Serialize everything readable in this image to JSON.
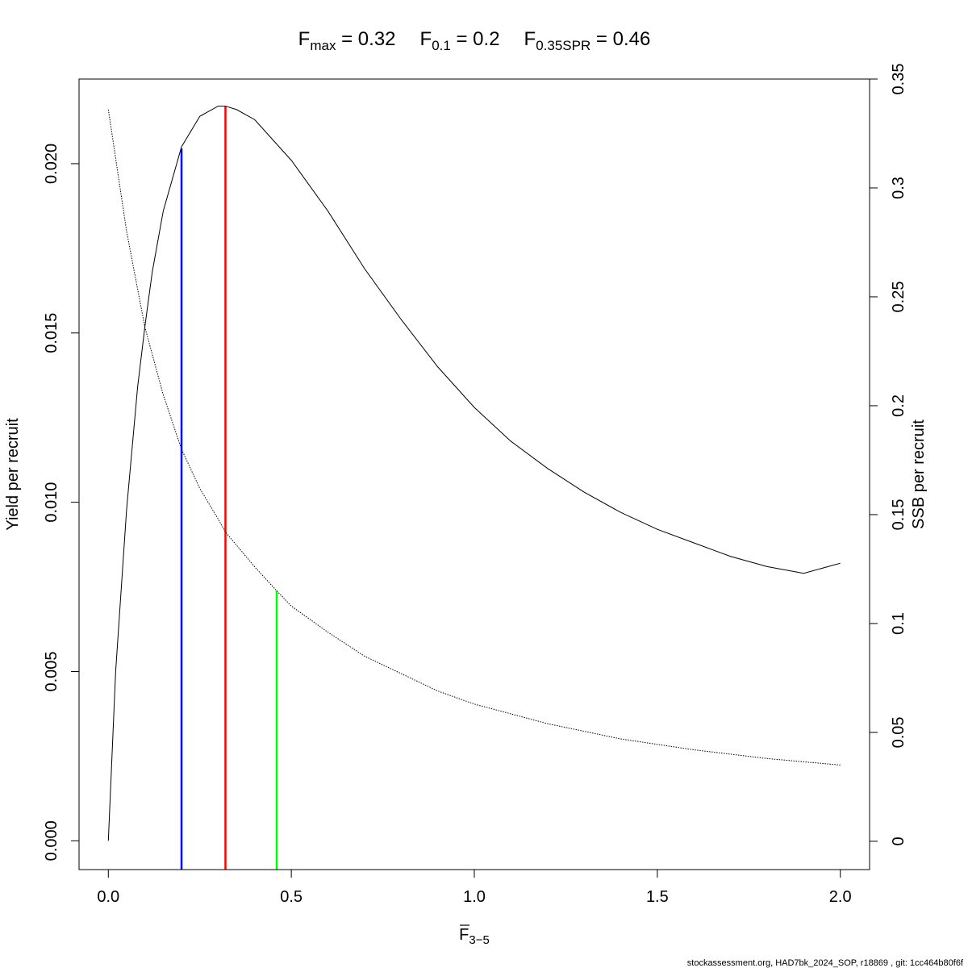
{
  "chart_data": {
    "type": "line",
    "title_parts": [
      {
        "base": "F",
        "sub": "max",
        "rest": " = 0.32",
        "color": "#000000"
      },
      {
        "base": "F",
        "sub": "0.1",
        "rest": " = 0.2",
        "color": "#000000"
      },
      {
        "base": "F",
        "sub": "0.35SPR",
        "rest": " = 0.46",
        "color": "#000000"
      }
    ],
    "xlabel": {
      "base": "F",
      "sub": "3−5"
    },
    "ylabel_left": "Yield per recruit",
    "ylabel_right": "SSB per recruit",
    "xlim": [
      -0.08,
      2.08
    ],
    "ylim_left": [
      -0.00085,
      0.0225
    ],
    "ylim_right": [
      -0.013,
      0.35
    ],
    "x_ticks": [
      0,
      0.5,
      1,
      1.5,
      2
    ],
    "x_tick_labels": [
      "0.0",
      "0.5",
      "1.0",
      "1.5",
      "2.0"
    ],
    "y_left_ticks": [
      0,
      0.005,
      0.01,
      0.015,
      0.02
    ],
    "y_left_tick_labels": [
      "0.000",
      "0.005",
      "0.010",
      "0.015",
      "0.020"
    ],
    "y_right_ticks": [
      0,
      0.05,
      0.1,
      0.15,
      0.2,
      0.25,
      0.3,
      0.35
    ],
    "y_right_tick_labels": [
      "0",
      "0.05",
      "0.1",
      "0.15",
      "0.2",
      "0.25",
      "0.3",
      "0.35"
    ],
    "series": [
      {
        "axis": "left",
        "style": "solid",
        "color": "#000000",
        "x": [
          0,
          0.02,
          0.05,
          0.08,
          0.1,
          0.12,
          0.15,
          0.2,
          0.25,
          0.3,
          0.32,
          0.35,
          0.4,
          0.5,
          0.6,
          0.7,
          0.8,
          0.9,
          1.0,
          1.1,
          1.2,
          1.3,
          1.4,
          1.5,
          1.6,
          1.7,
          1.8,
          1.9,
          2.0
        ],
        "y": [
          0,
          0.005,
          0.0098,
          0.0134,
          0.0152,
          0.0168,
          0.0186,
          0.0205,
          0.0214,
          0.0217,
          0.0217,
          0.0216,
          0.0213,
          0.0201,
          0.0186,
          0.0169,
          0.0154,
          0.014,
          0.0128,
          0.0118,
          0.011,
          0.0103,
          0.0097,
          0.0092,
          0.0088,
          0.0084,
          0.0081,
          0.0079,
          0.0082
        ]
      },
      {
        "axis": "right",
        "style": "dotted",
        "color": "#000000",
        "x": [
          0,
          0.05,
          0.1,
          0.15,
          0.2,
          0.25,
          0.3,
          0.32,
          0.4,
          0.46,
          0.5,
          0.6,
          0.7,
          0.8,
          0.9,
          1.0,
          1.2,
          1.4,
          1.6,
          1.8,
          2.0
        ],
        "y": [
          0.336,
          0.28,
          0.236,
          0.205,
          0.18,
          0.162,
          0.148,
          0.142,
          0.126,
          0.115,
          0.108,
          0.096,
          0.085,
          0.077,
          0.069,
          0.063,
          0.054,
          0.047,
          0.042,
          0.038,
          0.035
        ]
      }
    ],
    "reference_lines": [
      {
        "name": "F0.1",
        "x": 0.2,
        "y_left_top": 0.02045,
        "color": "#0000ff"
      },
      {
        "name": "Fmax",
        "x": 0.32,
        "y_left_top": 0.0217,
        "color": "#ff0000"
      },
      {
        "name": "F0.35SPR",
        "x": 0.46,
        "y_right_top": 0.115,
        "color": "#00ff00"
      }
    ]
  },
  "footer": "stockassessment.org, HAD7bk_2024_SOP, r18869 , git: 1cc464b80f6f"
}
